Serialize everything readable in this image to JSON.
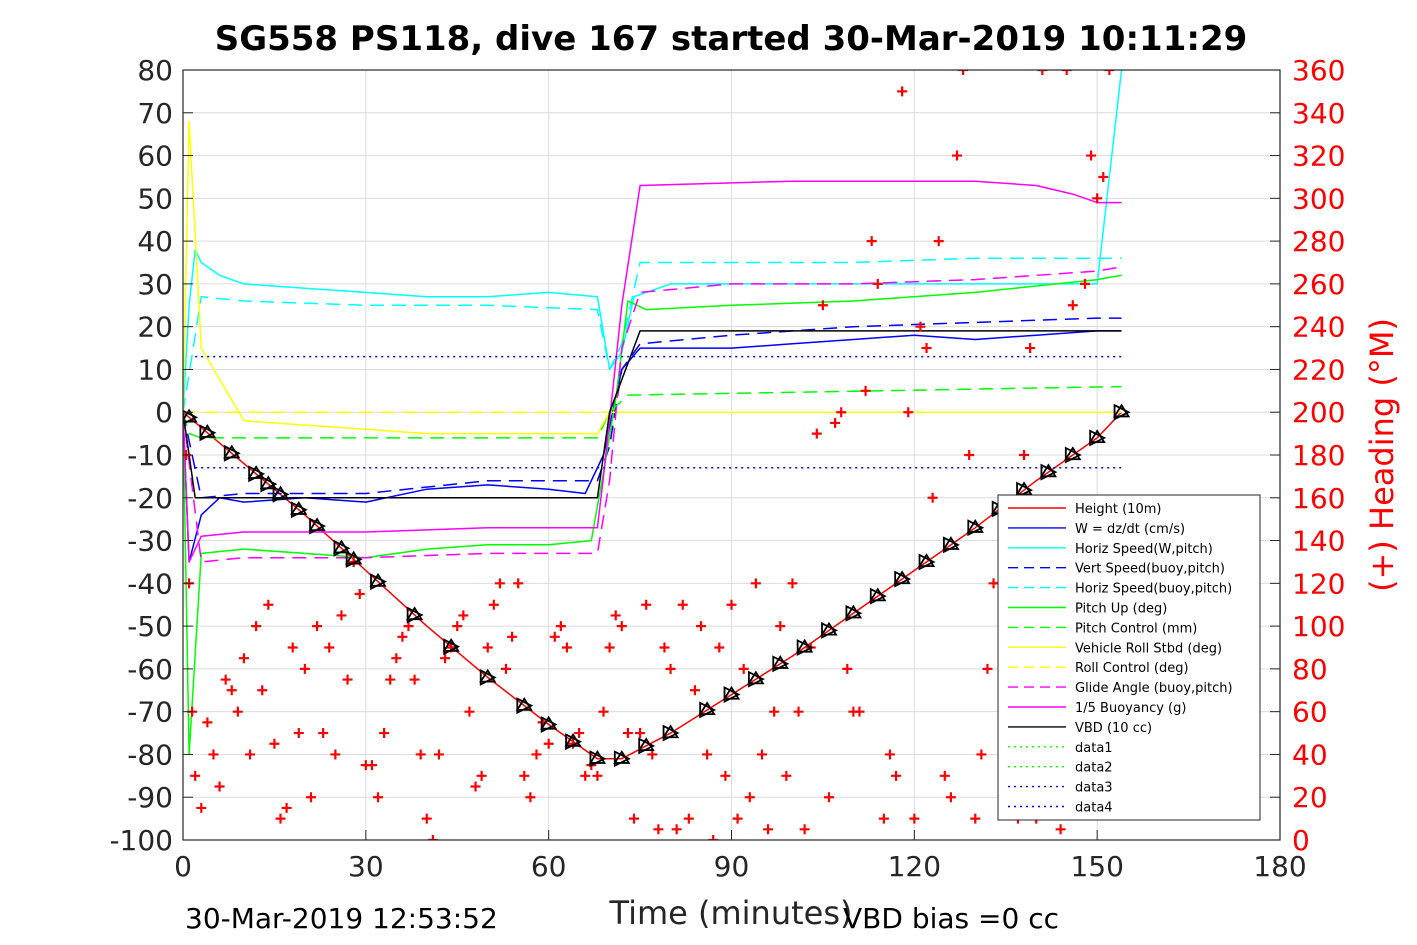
{
  "chart_data": {
    "type": "line",
    "title": "SG558 PS118, dive 167 started 30-Mar-2019 10:11:29",
    "xlabel": "Time (minutes)",
    "ylabel_right": "(+) Heading (°M)",
    "xlim": [
      0,
      180
    ],
    "ylim": [
      -100,
      80
    ],
    "ylim_right": [
      0,
      360
    ],
    "x_ticks": [
      "0",
      "30",
      "60",
      "90",
      "120",
      "150",
      "180"
    ],
    "y_ticks": [
      "80",
      "70",
      "60",
      "50",
      "40",
      "30",
      "20",
      "10",
      "0",
      "-10",
      "-20",
      "-30",
      "-40",
      "-50",
      "-60",
      "-70",
      "-80",
      "-90",
      "-100"
    ],
    "y_right_ticks": [
      "360",
      "340",
      "320",
      "300",
      "280",
      "260",
      "240",
      "220",
      "200",
      "180",
      "160",
      "140",
      "120",
      "100",
      "80",
      "60",
      "40",
      "20",
      "0"
    ],
    "grid": true,
    "legend_position": "bottom-right",
    "footer_left": "30-Mar-2019 12:53:52",
    "footer_right": "VBD bias =0 cc",
    "series": [
      {
        "name": "Height (10m)",
        "color": "#ff0000",
        "style": "solid",
        "x": [
          0,
          10,
          20,
          30,
          40,
          50,
          60,
          68,
          72,
          80,
          90,
          100,
          110,
          120,
          130,
          140,
          150,
          154
        ],
        "y": [
          0,
          -12,
          -24,
          -37,
          -50,
          -62,
          -73,
          -81,
          -81,
          -75,
          -66,
          -57,
          -47,
          -37,
          -27,
          -16,
          -6,
          0
        ]
      },
      {
        "name": "W = dz/dt (cm/s)",
        "color": "#0000ff",
        "style": "solid",
        "x": [
          0,
          1,
          3,
          6,
          10,
          20,
          30,
          40,
          50,
          60,
          66,
          69,
          72,
          75,
          80,
          90,
          100,
          110,
          120,
          130,
          140,
          150,
          154
        ],
        "y": [
          0,
          -35,
          -24,
          -20,
          -21,
          -20,
          -21,
          -18,
          -17,
          -18,
          -19,
          -10,
          10,
          15,
          15,
          15,
          16,
          17,
          18,
          17,
          18,
          19,
          19
        ]
      },
      {
        "name": "Horiz Speed(W,pitch)",
        "color": "#00ffff",
        "style": "solid",
        "x": [
          0,
          1,
          2,
          3,
          6,
          10,
          20,
          30,
          40,
          50,
          60,
          68,
          70,
          72,
          74,
          80,
          90,
          100,
          110,
          120,
          130,
          140,
          150,
          154
        ],
        "y": [
          0,
          25,
          38,
          35,
          32,
          30,
          29,
          28,
          27,
          27,
          28,
          27,
          10,
          14,
          27,
          30,
          30,
          30,
          30,
          30,
          30,
          30,
          30,
          80
        ]
      },
      {
        "name": "Vert Speed(buoy,pitch)",
        "color": "#0000ff",
        "style": "dashed",
        "x": [
          0,
          3,
          10,
          30,
          50,
          68,
          70,
          72,
          75,
          90,
          110,
          130,
          150,
          154
        ],
        "y": [
          0,
          -20,
          -19,
          -19,
          -16,
          -16,
          -8,
          10,
          16,
          18,
          20,
          21,
          22,
          22
        ]
      },
      {
        "name": "Horiz Speed(buoy,pitch)",
        "color": "#00ffff",
        "style": "dashed",
        "x": [
          0,
          3,
          10,
          30,
          50,
          68,
          70,
          72,
          75,
          90,
          110,
          130,
          150,
          154
        ],
        "y": [
          0,
          27,
          26,
          25,
          25,
          24,
          10,
          16,
          35,
          35,
          35,
          36,
          36,
          36
        ]
      },
      {
        "name": "Pitch Up (deg)",
        "color": "#00ff00",
        "style": "solid",
        "x": [
          0,
          1,
          3,
          10,
          20,
          30,
          40,
          50,
          60,
          67,
          69,
          71,
          73,
          76,
          90,
          110,
          130,
          150,
          154
        ],
        "y": [
          0,
          -80,
          -33,
          -32,
          -33,
          -34,
          -32,
          -31,
          -31,
          -30,
          -14,
          3,
          26,
          24,
          25,
          26,
          28,
          31,
          32
        ]
      },
      {
        "name": "Pitch Control (mm)",
        "color": "#00ff00",
        "style": "dashed",
        "x": [
          0,
          1,
          3,
          68,
          70,
          73,
          154
        ],
        "y": [
          0,
          -5,
          -6,
          -6,
          0,
          4,
          6
        ]
      },
      {
        "name": "Vehicle Roll Stbd (deg)",
        "color": "#ffff00",
        "style": "solid",
        "x": [
          0,
          1,
          3,
          10,
          20,
          30,
          40,
          50,
          60,
          68,
          70,
          73,
          90,
          110,
          130,
          150,
          154
        ],
        "y": [
          0,
          68,
          15,
          -2,
          -3,
          -4,
          -5,
          -5,
          -5,
          -5,
          0,
          0,
          0,
          0,
          0,
          0,
          0
        ]
      },
      {
        "name": "Roll Control (deg)",
        "color": "#ffff00",
        "style": "dashed",
        "x": [
          0,
          154
        ],
        "y": [
          0,
          0
        ]
      },
      {
        "name": "Glide Angle (buoy,pitch)",
        "color": "#ff00ff",
        "style": "dashed",
        "x": [
          0,
          3,
          10,
          30,
          50,
          68,
          70,
          72,
          75,
          90,
          110,
          130,
          150,
          154
        ],
        "y": [
          0,
          -35,
          -34,
          -34,
          -33,
          -33,
          -16,
          15,
          28,
          30,
          30,
          31,
          33,
          34
        ]
      },
      {
        "name": "1/5 Buoyancy (g)",
        "color": "#ff00ff",
        "style": "solid",
        "x": [
          0,
          1,
          3,
          10,
          30,
          50,
          68,
          69,
          72,
          75,
          100,
          130,
          140,
          146,
          150,
          154
        ],
        "y": [
          0,
          -35,
          -29,
          -28,
          -28,
          -27,
          -27,
          -15,
          25,
          53,
          54,
          54,
          53,
          51,
          49,
          49
        ]
      },
      {
        "name": "VBD (10 cc)",
        "color": "#000000",
        "style": "solid",
        "x": [
          0,
          2,
          68,
          70,
          75,
          154
        ],
        "y": [
          0,
          -20,
          -20,
          0,
          19,
          19
        ]
      },
      {
        "name": "data1",
        "color": "#00ff00",
        "style": "dotted",
        "x": [],
        "y": []
      },
      {
        "name": "data2",
        "color": "#00ff00",
        "style": "dotted",
        "x": [],
        "y": []
      },
      {
        "name": "data3",
        "color": "#0000ff",
        "style": "dotted",
        "x": [
          2,
          154
        ],
        "y": [
          13,
          13
        ]
      },
      {
        "name": "data4",
        "color": "#0000ff",
        "style": "dotted",
        "x": [
          2,
          154
        ],
        "y": [
          -13,
          -13
        ]
      }
    ],
    "height_markers_x": [
      1,
      4,
      8,
      12,
      14,
      16,
      19,
      22,
      26,
      28,
      32,
      38,
      44,
      50,
      56,
      60,
      64,
      68,
      72,
      76,
      80,
      86,
      90,
      94,
      98,
      102,
      106,
      110,
      114,
      118,
      122,
      126,
      130,
      134,
      138,
      142,
      146,
      150,
      154
    ],
    "heading_series": {
      "name": "(+) Heading",
      "color": "#ff0000",
      "marker": "+",
      "x": [
        0.5,
        1,
        1.5,
        2,
        3,
        4,
        5,
        6,
        7,
        8,
        9,
        10,
        11,
        12,
        13,
        14,
        15,
        16,
        17,
        18,
        19,
        20,
        21,
        22,
        23,
        24,
        25,
        26,
        27,
        28,
        29,
        30,
        31,
        32,
        33,
        34,
        35,
        36,
        37,
        38,
        39,
        40,
        41,
        42,
        43,
        44,
        45,
        46,
        47,
        48,
        49,
        50,
        51,
        52,
        53,
        54,
        55,
        56,
        57,
        58,
        59,
        60,
        61,
        62,
        63,
        64,
        65,
        66,
        67,
        68,
        69,
        70,
        71,
        72,
        73,
        74,
        75,
        76,
        77,
        78,
        79,
        80,
        81,
        82,
        83,
        84,
        85,
        86,
        87,
        88,
        89,
        90,
        91,
        92,
        93,
        94,
        95,
        96,
        97,
        98,
        99,
        100,
        101,
        102,
        103,
        104,
        105,
        106,
        107,
        108,
        109,
        110,
        111,
        112,
        113,
        114,
        115,
        116,
        117,
        118,
        119,
        120,
        121,
        122,
        123,
        124,
        125,
        126,
        127,
        128,
        129,
        130,
        131,
        132,
        133,
        134,
        135,
        136,
        137,
        138,
        139,
        140,
        141,
        142,
        143,
        144,
        145,
        146,
        147,
        148,
        149,
        150,
        151,
        152,
        153
      ],
      "y": [
        180,
        120,
        60,
        30,
        15,
        55,
        40,
        25,
        75,
        70,
        60,
        85,
        40,
        100,
        70,
        110,
        45,
        10,
        15,
        90,
        50,
        80,
        20,
        100,
        50,
        90,
        40,
        105,
        75,
        130,
        115,
        35,
        35,
        20,
        50,
        75,
        85,
        95,
        100,
        75,
        40,
        10,
        0,
        40,
        85,
        90,
        100,
        105,
        60,
        25,
        30,
        90,
        110,
        120,
        80,
        95,
        120,
        30,
        20,
        40,
        55,
        45,
        95,
        100,
        90,
        45,
        50,
        30,
        35,
        30,
        60,
        90,
        105,
        100,
        50,
        10,
        50,
        110,
        40,
        5,
        90,
        80,
        5,
        110,
        10,
        70,
        100,
        40,
        0,
        90,
        30,
        110,
        10,
        80,
        20,
        120,
        40,
        5,
        60,
        100,
        30,
        120,
        60,
        5,
        90,
        190,
        250,
        20,
        195,
        200,
        80,
        60,
        60,
        210,
        280,
        260,
        10,
        40,
        30,
        350,
        200,
        10,
        240,
        230,
        160,
        280,
        30,
        20,
        320,
        360,
        180,
        10,
        40,
        80,
        120,
        120,
        80,
        30,
        10,
        180,
        230,
        10,
        360,
        30,
        20,
        5,
        360,
        250,
        20,
        260,
        320,
        300,
        310,
        360,
        40
      ]
    }
  }
}
